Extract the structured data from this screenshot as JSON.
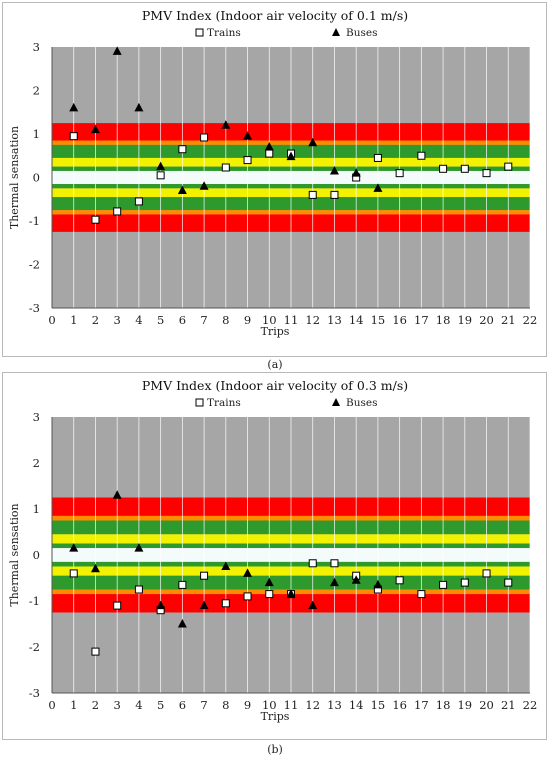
{
  "figure": {
    "captions": [
      "(a)",
      "(b)"
    ]
  },
  "colors": {
    "grid_bg": "#a6a6a6",
    "band_red": "#ff0000",
    "band_orange": "#ff8c00",
    "band_green": "#2e9a2e",
    "band_yellow": "#f2f200",
    "band_neutral": "#f4fbfb",
    "marker": "#000000"
  },
  "chart_data": [
    {
      "type": "scatter",
      "title": "PMV Index  (Indoor air velocity of 0.1 m/s)",
      "xlabel": "Trips",
      "ylabel": "Thermal sensation",
      "xlim": [
        0,
        22
      ],
      "ylim": [
        -3,
        3
      ],
      "x_ticks": [
        0,
        1,
        2,
        3,
        4,
        5,
        6,
        7,
        8,
        9,
        10,
        11,
        12,
        13,
        14,
        15,
        16,
        17,
        18,
        19,
        20,
        21,
        22
      ],
      "y_ticks": [
        3,
        2,
        1,
        0,
        -1,
        -2,
        -3
      ],
      "legend": [
        "Trains",
        "Buses"
      ],
      "legend_position": "top",
      "grid": true,
      "series": [
        {
          "name": "Trains",
          "marker": "open-square",
          "x": [
            1,
            2,
            3,
            4,
            5,
            6,
            7,
            8,
            9,
            10,
            11,
            12,
            13,
            14,
            15,
            16,
            17,
            18,
            19,
            20,
            21
          ],
          "y": [
            0.95,
            -0.97,
            -0.78,
            -0.55,
            0.05,
            0.65,
            0.92,
            0.23,
            0.4,
            0.55,
            0.55,
            -0.4,
            -0.4,
            0.0,
            0.45,
            0.1,
            0.5,
            0.2,
            0.2,
            0.1,
            0.25
          ]
        },
        {
          "name": "Buses",
          "marker": "filled-triangle",
          "x": [
            1,
            2,
            3,
            4,
            5,
            6,
            7,
            8,
            9,
            10,
            11,
            12,
            13,
            14,
            15
          ],
          "y": [
            1.6,
            1.1,
            2.9,
            1.6,
            0.25,
            -0.3,
            -0.2,
            1.2,
            0.95,
            0.7,
            0.48,
            0.8,
            0.15,
            0.1,
            -0.25
          ]
        }
      ]
    },
    {
      "type": "scatter",
      "title": "PMV Index  (Indoor air velocity of 0.3 m/s)",
      "xlabel": "Trips",
      "ylabel": "Thermal sensation",
      "xlim": [
        0,
        22
      ],
      "ylim": [
        -3,
        3
      ],
      "x_ticks": [
        0,
        1,
        2,
        3,
        4,
        5,
        6,
        7,
        8,
        9,
        10,
        11,
        12,
        13,
        14,
        15,
        16,
        17,
        18,
        19,
        20,
        21,
        22
      ],
      "y_ticks": [
        3,
        2,
        1,
        0,
        -1,
        -2,
        -3
      ],
      "legend": [
        "Trains",
        "Buses"
      ],
      "legend_position": "top",
      "grid": true,
      "series": [
        {
          "name": "Trains",
          "marker": "open-square",
          "x": [
            1,
            2,
            3,
            4,
            5,
            6,
            7,
            8,
            9,
            10,
            11,
            12,
            13,
            14,
            15,
            16,
            17,
            18,
            19,
            20,
            21
          ],
          "y": [
            -0.4,
            -2.1,
            -1.1,
            -0.75,
            -1.2,
            -0.65,
            -0.45,
            -1.05,
            -0.9,
            -0.85,
            -0.85,
            -0.18,
            -0.18,
            -0.45,
            -0.75,
            -0.55,
            -0.85,
            -0.65,
            -0.6,
            -0.4,
            -0.6
          ]
        },
        {
          "name": "Buses",
          "marker": "filled-triangle",
          "x": [
            1,
            2,
            3,
            4,
            5,
            6,
            7,
            8,
            9,
            10,
            11,
            12,
            13,
            14,
            15
          ],
          "y": [
            0.15,
            -0.3,
            1.3,
            0.15,
            -1.1,
            -1.5,
            -1.1,
            -0.25,
            -0.4,
            -0.6,
            -0.85,
            -1.1,
            -0.6,
            -0.55,
            -0.65
          ]
        }
      ]
    }
  ]
}
